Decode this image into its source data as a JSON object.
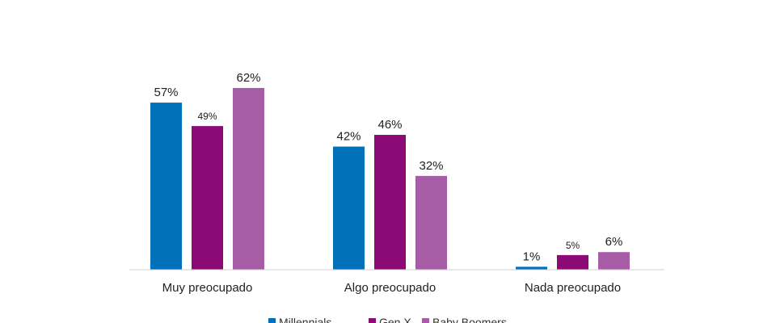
{
  "chart_data": {
    "type": "bar",
    "title": "",
    "xlabel": "",
    "ylabel": "",
    "ylim": [
      0,
      70
    ],
    "grid": false,
    "legend_position": "bottom",
    "categories": [
      "Muy preocupado",
      "Algo preocupado",
      "Nada preocupado"
    ],
    "series": [
      {
        "name": "Millennials",
        "color": "#0070b8",
        "values": [
          57,
          42,
          1
        ],
        "labels": [
          "57%",
          "42%",
          "1%"
        ]
      },
      {
        "name": "Gen X",
        "color": "#8b0a76",
        "values": [
          49,
          46,
          5
        ],
        "labels": [
          "49%",
          "46%",
          "5%"
        ]
      },
      {
        "name": "Baby Boomers",
        "color": "#a75ca6",
        "values": [
          62,
          32,
          6
        ],
        "labels": [
          "62%",
          "32%",
          "6%"
        ]
      }
    ]
  }
}
